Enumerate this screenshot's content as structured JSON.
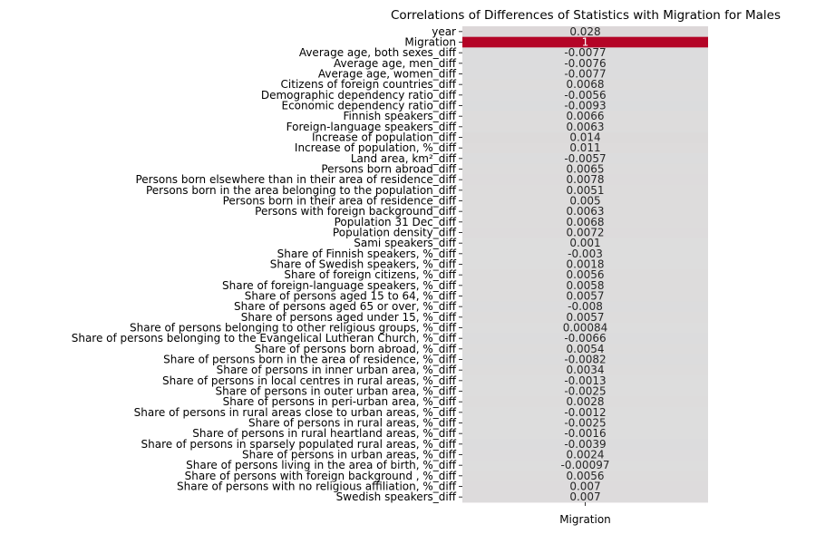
{
  "chart_data": {
    "type": "heatmap",
    "title": "Correlations of Differences of Statistics with Migration for Males",
    "columns": [
      "Migration"
    ],
    "rows": [
      "year",
      "Migration",
      "Average age, both sexes_diff",
      "Average age, men_diff",
      "Average age, women_diff",
      "Citizens of foreign countries_diff",
      "Demographic dependency ratio_diff",
      "Economic dependency ratio_diff",
      "Finnish speakers_diff",
      "Foreign-language speakers_diff",
      "Increase of population_diff",
      "Increase of population, %_diff",
      "Land area, km²_diff",
      "Persons born abroad_diff",
      "Persons born elsewhere than in their area of residence_diff",
      "Persons born in the area belonging to the population_diff",
      "Persons born in their area of residence_diff",
      "Persons with foreign background_diff",
      "Population 31 Dec_diff",
      "Population density_diff",
      "Sami speakers_diff",
      "Share of Finnish speakers, %_diff",
      "Share of Swedish speakers, %_diff",
      "Share of foreign citizens, %_diff",
      "Share of foreign-language speakers, %_diff",
      "Share of persons aged 15 to 64, %_diff",
      "Share of persons aged 65 or over, %_diff",
      "Share of persons aged under 15, %_diff",
      "Share of persons belonging to other religious groups, %_diff",
      "Share of persons belonging to the Evangelical Lutheran Church, %_diff",
      "Share of persons born abroad, %_diff",
      "Share of persons born in the area of residence, %_diff",
      "Share of persons in inner urban area, %_diff",
      "Share of persons in local centres in rural areas, %_diff",
      "Share of persons in outer urban area, %_diff",
      "Share of persons in peri-urban area, %_diff",
      "Share of persons in rural areas close to urban areas, %_diff",
      "Share of persons in rural areas, %_diff",
      "Share of persons in rural heartland areas, %_diff",
      "Share of persons in sparsely populated rural areas, %_diff",
      "Share of persons in urban areas, %_diff",
      "Share of persons living in the area of birth, %_diff",
      "Share of persons with foreign background , %_diff",
      "Share of persons with no religious affiliation, %_diff",
      "Swedish speakers_diff"
    ],
    "values": [
      0.028,
      1,
      -0.0077,
      -0.0076,
      -0.0077,
      0.0068,
      -0.0056,
      -0.0093,
      0.0066,
      0.0063,
      0.014,
      0.011,
      -0.0057,
      0.0065,
      0.0078,
      0.0051,
      0.005,
      0.0063,
      0.0068,
      0.0072,
      0.001,
      -0.003,
      0.0018,
      0.0056,
      0.0058,
      0.0057,
      -0.008,
      0.0057,
      0.00084,
      -0.0066,
      0.0054,
      -0.0082,
      0.0034,
      -0.0013,
      -0.0025,
      0.0028,
      -0.0012,
      -0.0025,
      -0.0016,
      -0.0039,
      0.0024,
      -0.00097,
      0.0056,
      0.007,
      0.007
    ],
    "labels": [
      "0.028",
      "1",
      "-0.0077",
      "-0.0076",
      "-0.0077",
      "0.0068",
      "-0.0056",
      "-0.0093",
      "0.0066",
      "0.0063",
      "0.014",
      "0.011",
      "-0.0057",
      "0.0065",
      "0.0078",
      "0.0051",
      "0.005",
      "0.0063",
      "0.0068",
      "0.0072",
      "0.001",
      "-0.003",
      "0.0018",
      "0.0056",
      "0.0058",
      "0.0057",
      "-0.008",
      "0.0057",
      "0.00084",
      "-0.0066",
      "0.0054",
      "-0.0082",
      "0.0034",
      "-0.0013",
      "-0.0025",
      "0.0028",
      "-0.0012",
      "-0.0025",
      "-0.0016",
      "-0.0039",
      "0.0024",
      "-0.00097",
      "0.0056",
      "0.007",
      "0.007"
    ],
    "colormap": "coolwarm",
    "vmin": -1,
    "vmax": 1,
    "colorbar": false,
    "colors": {
      "neutral": "#dcdcdc",
      "max": "#b40426"
    }
  }
}
